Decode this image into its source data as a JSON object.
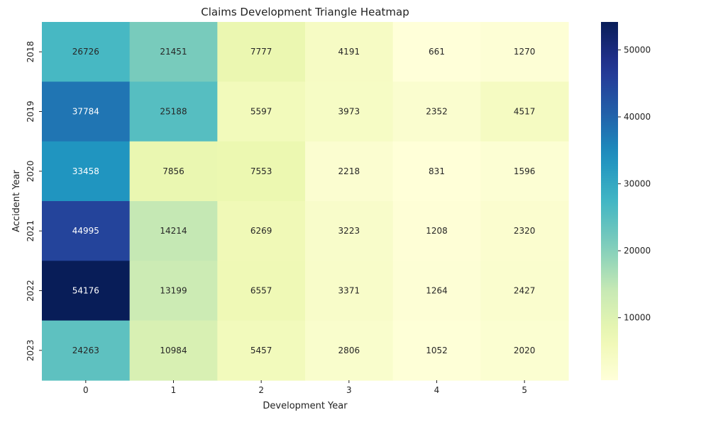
{
  "chart_data": {
    "type": "heatmap",
    "title": "Claims Development Triangle Heatmap",
    "xlabel": "Development Year",
    "ylabel": "Accident Year",
    "x_categories": [
      "0",
      "1",
      "2",
      "3",
      "4",
      "5"
    ],
    "y_categories": [
      "2018",
      "2019",
      "2020",
      "2021",
      "2022",
      "2023"
    ],
    "values": [
      [
        26726,
        21451,
        7777,
        4191,
        661,
        1270
      ],
      [
        37784,
        25188,
        5597,
        3973,
        2352,
        4517
      ],
      [
        33458,
        7856,
        7553,
        2218,
        831,
        1596
      ],
      [
        44995,
        14214,
        6269,
        3223,
        1208,
        2320
      ],
      [
        54176,
        13199,
        6557,
        3371,
        1264,
        2427
      ],
      [
        24263,
        10984,
        5457,
        2806,
        1052,
        2020
      ]
    ],
    "colormap": "YlGnBu",
    "colorbar": {
      "range": [
        661,
        54176
      ],
      "ticks": [
        10000,
        20000,
        30000,
        40000,
        50000
      ],
      "tick_labels": [
        "10000",
        "20000",
        "30000",
        "40000",
        "50000"
      ]
    },
    "annotations": true,
    "grid": false
  }
}
